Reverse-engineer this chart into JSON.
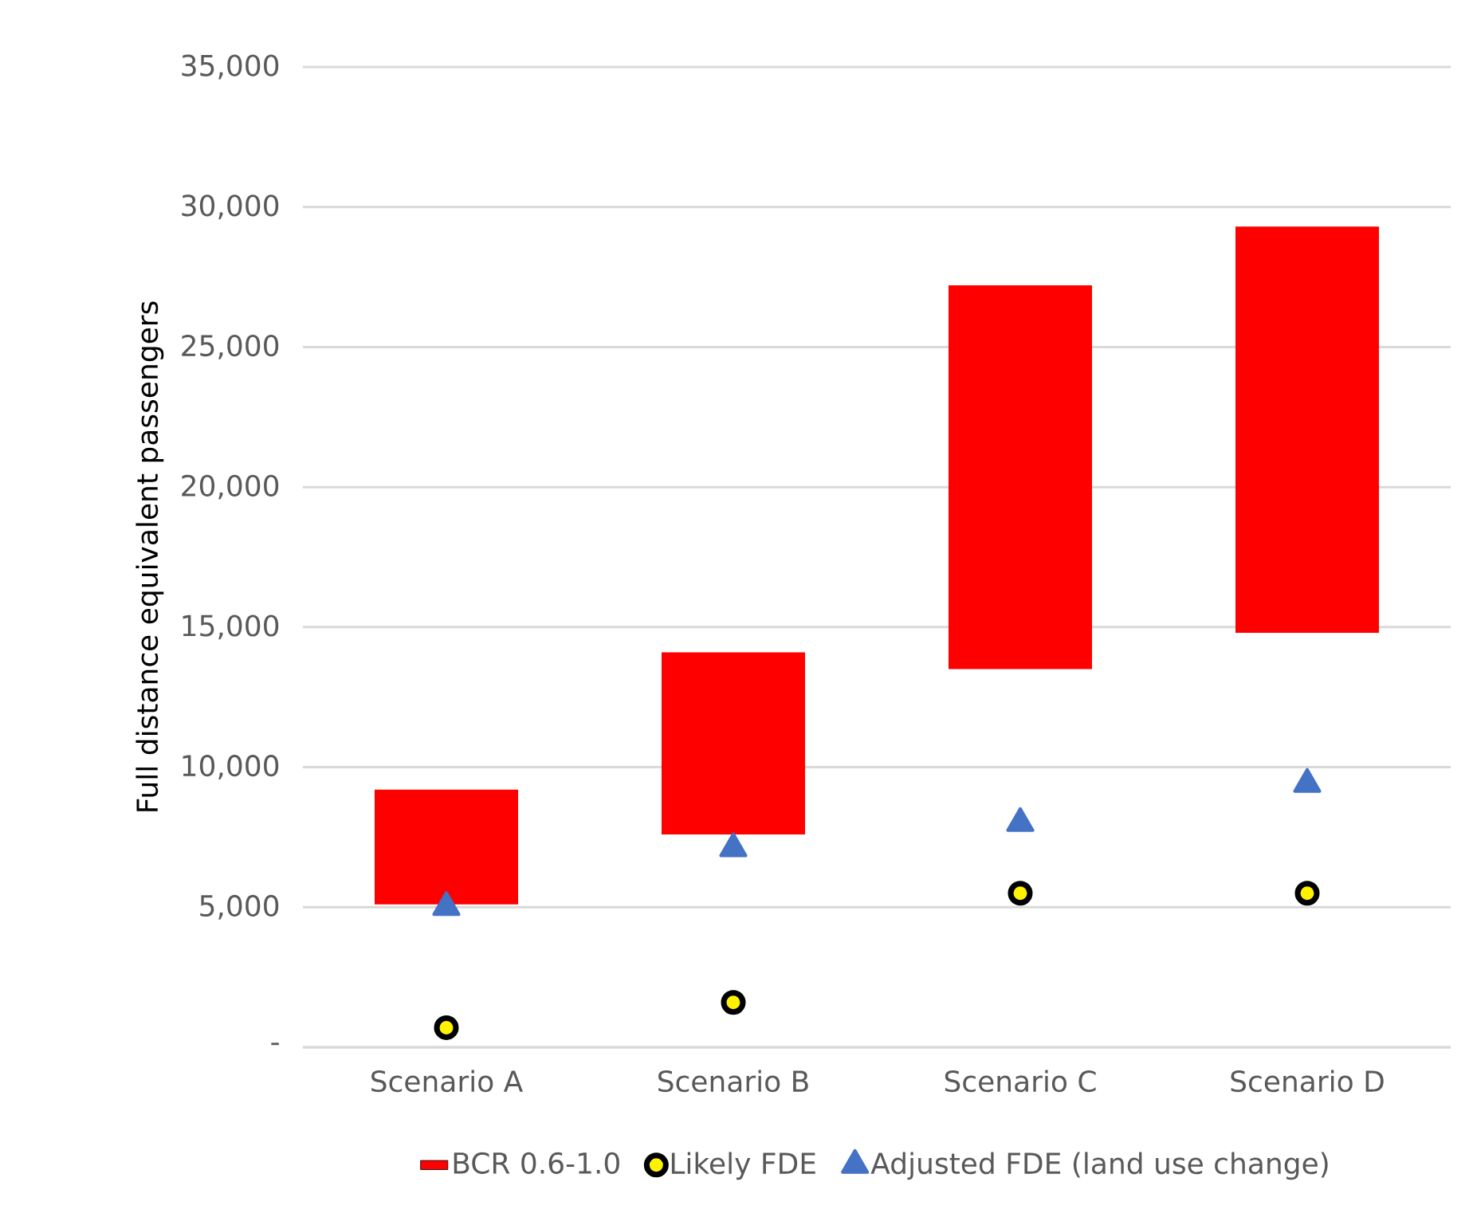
{
  "chart_data": {
    "type": "bar",
    "ylabel": "Full distance equivalent passengers",
    "categories": [
      "Scenario A",
      "Scenario B",
      "Scenario C",
      "Scenario D"
    ],
    "series": [
      {
        "name": "BCR 0.6-1.0",
        "color": "#ff0000",
        "base": [
          5100,
          7600,
          13500,
          14800
        ],
        "values": [
          4100,
          6500,
          13700,
          14500
        ]
      },
      {
        "name": "Likely FDE",
        "type": "scatter",
        "marker": "circle",
        "color": "#000000",
        "x": [
          "Scenario A",
          "Scenario B",
          "Scenario C",
          "Scenario D"
        ],
        "values": [
          700,
          1600,
          5500,
          5500
        ]
      },
      {
        "name": "Adjusted FDE (land use change)",
        "type": "scatter",
        "marker": "triangle",
        "color": "#4472c4",
        "x": [
          "Scenario A",
          "Scenario B",
          "Scenario C",
          "Scenario D"
        ],
        "values": [
          5000,
          7100,
          8000,
          9400
        ]
      }
    ],
    "ylim": [
      0,
      35000
    ],
    "yticks": [
      {
        "value": 0,
        "label": "-"
      },
      {
        "value": 5000,
        "label": "5,000"
      },
      {
        "value": 10000,
        "label": "10,000"
      },
      {
        "value": 15000,
        "label": "15,000"
      },
      {
        "value": 20000,
        "label": "20,000"
      },
      {
        "value": 25000,
        "label": "25,000"
      },
      {
        "value": 30000,
        "label": "30,000"
      },
      {
        "value": 35000,
        "label": "35,000"
      }
    ],
    "grid": "y",
    "legend": "bottom"
  }
}
